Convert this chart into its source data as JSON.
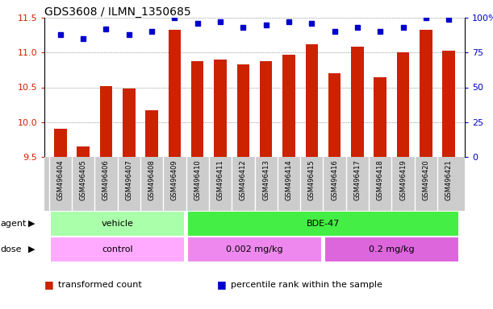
{
  "title": "GDS3608 / ILMN_1350685",
  "samples": [
    "GSM496404",
    "GSM496405",
    "GSM496406",
    "GSM496407",
    "GSM496408",
    "GSM496409",
    "GSM496410",
    "GSM496411",
    "GSM496412",
    "GSM496413",
    "GSM496414",
    "GSM496415",
    "GSM496416",
    "GSM496417",
    "GSM496418",
    "GSM496419",
    "GSM496420",
    "GSM496421"
  ],
  "bar_values": [
    9.9,
    9.65,
    10.52,
    10.48,
    10.17,
    11.33,
    10.87,
    10.9,
    10.83,
    10.87,
    10.97,
    11.12,
    10.7,
    11.08,
    10.65,
    11.0,
    11.33,
    11.03
  ],
  "dot_values": [
    88,
    85,
    92,
    88,
    90,
    100,
    96,
    97,
    93,
    95,
    97,
    96,
    90,
    93,
    90,
    93,
    100,
    99
  ],
  "ylim_left": [
    9.5,
    11.5
  ],
  "ylim_right": [
    0,
    100
  ],
  "yticks_left": [
    9.5,
    10.0,
    10.5,
    11.0,
    11.5
  ],
  "yticks_right": [
    0,
    25,
    50,
    75,
    100
  ],
  "bar_color": "#cc2200",
  "dot_color": "#0000cc",
  "bar_bottom": 9.5,
  "agent_labels": [
    {
      "text": "vehicle",
      "start": 0,
      "end": 5,
      "color": "#aaffaa"
    },
    {
      "text": "BDE-47",
      "start": 6,
      "end": 17,
      "color": "#44ee44"
    }
  ],
  "dose_labels": [
    {
      "text": "control",
      "start": 0,
      "end": 5,
      "color": "#ffaaff"
    },
    {
      "text": "0.002 mg/kg",
      "start": 6,
      "end": 11,
      "color": "#ee88ee"
    },
    {
      "text": "0.2 mg/kg",
      "start": 12,
      "end": 17,
      "color": "#dd66dd"
    }
  ],
  "legend_items": [
    {
      "color": "#cc2200",
      "label": "transformed count"
    },
    {
      "color": "#0000cc",
      "label": "percentile rank within the sample"
    }
  ],
  "grid_color": "#555555",
  "bg_color": "#ffffff",
  "tick_area_bg": "#cccccc",
  "agent_label_color": "#009900",
  "dose_label_color": "#990099"
}
